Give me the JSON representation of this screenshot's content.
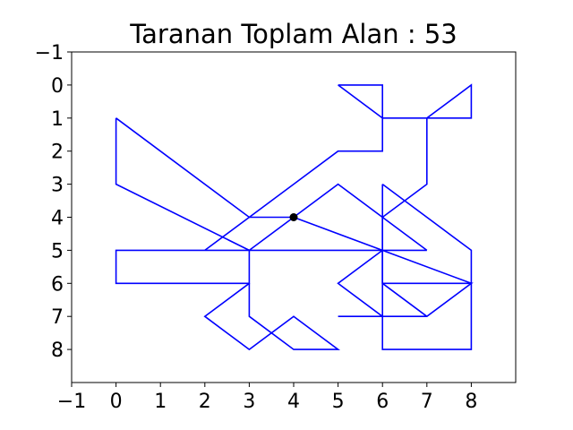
{
  "chart_data": {
    "type": "line",
    "title": "Taranan Toplam Alan : 53",
    "xlabel": "",
    "ylabel": "",
    "xlim": [
      -1,
      9
    ],
    "ylim": [
      9,
      -1
    ],
    "y_inverted": true,
    "grid": false,
    "x_ticks": [
      -1,
      0,
      1,
      2,
      3,
      4,
      5,
      6,
      7,
      8
    ],
    "x_tick_labels": [
      "−1",
      "0",
      "1",
      "2",
      "3",
      "4",
      "5",
      "6",
      "7",
      "8"
    ],
    "y_ticks": [
      -1,
      0,
      1,
      2,
      3,
      4,
      5,
      6,
      7,
      8
    ],
    "y_tick_labels": [
      "−1",
      "0",
      "1",
      "2",
      "3",
      "4",
      "5",
      "6",
      "7",
      "8"
    ],
    "line_color": "#0000ff",
    "marker_color": "#000000",
    "segments": [
      [
        [
          0,
          1
        ],
        [
          0,
          3
        ],
        [
          3,
          5
        ]
      ],
      [
        [
          0,
          1
        ],
        [
          3,
          4
        ],
        [
          4,
          4
        ]
      ],
      [
        [
          2,
          5
        ],
        [
          4,
          3
        ],
        [
          5,
          2
        ],
        [
          6,
          2
        ],
        [
          6,
          1
        ]
      ],
      [
        [
          5,
          0
        ],
        [
          6,
          0
        ],
        [
          6,
          1
        ],
        [
          5,
          0
        ]
      ],
      [
        [
          6,
          1
        ],
        [
          8,
          1
        ],
        [
          8,
          0
        ],
        [
          7,
          1
        ],
        [
          7,
          3
        ],
        [
          6,
          4
        ]
      ],
      [
        [
          4,
          4
        ],
        [
          3,
          5
        ],
        [
          3,
          6
        ],
        [
          0,
          6
        ],
        [
          0,
          5
        ],
        [
          7,
          5
        ]
      ],
      [
        [
          7,
          5
        ],
        [
          5,
          3
        ],
        [
          4,
          4
        ],
        [
          8,
          6
        ]
      ],
      [
        [
          6,
          3
        ],
        [
          8,
          5
        ],
        [
          8,
          8
        ],
        [
          6,
          8
        ],
        [
          6,
          4
        ]
      ],
      [
        [
          6,
          5
        ],
        [
          5,
          6
        ],
        [
          6,
          7
        ],
        [
          5,
          7
        ],
        [
          7,
          7
        ],
        [
          8,
          6
        ],
        [
          6,
          6
        ],
        [
          6,
          3
        ]
      ],
      [
        [
          6,
          5
        ],
        [
          6,
          6
        ],
        [
          7,
          7
        ]
      ],
      [
        [
          3,
          6
        ],
        [
          2,
          7
        ],
        [
          3,
          8
        ],
        [
          4,
          7
        ],
        [
          5,
          8
        ],
        [
          4,
          8
        ],
        [
          3,
          7
        ],
        [
          3,
          6
        ]
      ]
    ],
    "marker": [
      4,
      4
    ]
  }
}
